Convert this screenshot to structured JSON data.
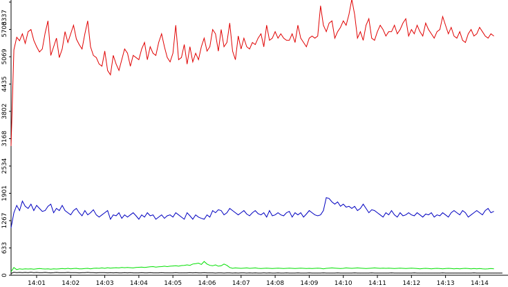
{
  "chart_data": {
    "type": "line",
    "grid": false,
    "ylim": [
      0,
      6337
    ],
    "y_ticks": [
      "0",
      "633",
      "1267",
      "1901",
      "2534",
      "3168",
      "3802",
      "4435",
      "5069",
      "5703",
      "6337"
    ],
    "x_range": [
      "14:00:15",
      "14:14:50"
    ],
    "x_ticks": [
      "14:01",
      "14:02",
      "14:03",
      "14:04",
      "14:05",
      "14:06",
      "14:07",
      "14:08",
      "14:09",
      "14:10",
      "14:11",
      "14:12",
      "14:13",
      "14:14"
    ],
    "series": [
      {
        "color": "#e00000",
        "x_start": "14:00:15",
        "x_step_seconds": 5,
        "values": [
          3000,
          5230,
          5520,
          5440,
          5600,
          5380,
          5650,
          5700,
          5450,
          5300,
          5180,
          5250,
          5620,
          5900,
          5100,
          5300,
          5500,
          5050,
          5250,
          5650,
          5400,
          5600,
          5800,
          5480,
          5350,
          5250,
          5600,
          5900,
          5300,
          5100,
          5050,
          4900,
          4850,
          5200,
          4750,
          4650,
          5100,
          4900,
          4750,
          5000,
          5250,
          5150,
          4850,
          5100,
          5050,
          5000,
          5250,
          5400,
          5000,
          5300,
          5150,
          5100,
          5400,
          5600,
          5300,
          5050,
          4950,
          5150,
          5800,
          5000,
          5050,
          5350,
          4900,
          5300,
          4950,
          5150,
          5000,
          5300,
          5500,
          5200,
          5300,
          5700,
          5600,
          5200,
          5700,
          5300,
          5400,
          5850,
          5200,
          5000,
          5550,
          5250,
          5500,
          5300,
          5250,
          5400,
          5350,
          5500,
          5600,
          5300,
          5800,
          5450,
          5500,
          5650,
          5500,
          5600,
          5500,
          5450,
          5450,
          5600,
          5400,
          5800,
          5500,
          5400,
          5300,
          5500,
          5550,
          5500,
          5550,
          6250,
          5800,
          5650,
          5850,
          5900,
          5500,
          5650,
          5750,
          5900,
          5800,
          6050,
          6400,
          6050,
          5500,
          5650,
          5450,
          5800,
          5950,
          5500,
          5450,
          5650,
          5800,
          5700,
          5550,
          5650,
          5650,
          5800,
          5600,
          5700,
          5850,
          5950,
          5550,
          5700,
          5600,
          5800,
          5650,
          5550,
          5850,
          5700,
          5600,
          5500,
          5650,
          5700,
          6000,
          5800,
          5600,
          5750,
          5550,
          5500,
          5650,
          5450,
          5400,
          5600,
          5700,
          5550,
          5600,
          5750,
          5650,
          5550,
          5500,
          5600,
          5550
        ]
      },
      {
        "color": "#0000c0",
        "x_start": "14:00:15",
        "x_step_seconds": 5,
        "values": [
          1100,
          1450,
          1620,
          1500,
          1720,
          1600,
          1550,
          1650,
          1500,
          1620,
          1550,
          1480,
          1500,
          1600,
          1650,
          1450,
          1550,
          1500,
          1620,
          1500,
          1450,
          1400,
          1500,
          1550,
          1450,
          1380,
          1500,
          1400,
          1450,
          1520,
          1400,
          1350,
          1400,
          1450,
          1500,
          1300,
          1400,
          1380,
          1450,
          1320,
          1400,
          1350,
          1400,
          1450,
          1380,
          1300,
          1400,
          1350,
          1450,
          1380,
          1400,
          1300,
          1350,
          1400,
          1320,
          1380,
          1400,
          1350,
          1450,
          1400,
          1350,
          1300,
          1450,
          1380,
          1300,
          1400,
          1350,
          1320,
          1300,
          1400,
          1350,
          1500,
          1450,
          1520,
          1500,
          1400,
          1450,
          1550,
          1500,
          1450,
          1400,
          1450,
          1500,
          1420,
          1380,
          1450,
          1500,
          1430,
          1400,
          1450,
          1350,
          1500,
          1380,
          1400,
          1450,
          1400,
          1380,
          1450,
          1480,
          1350,
          1450,
          1400,
          1450,
          1350,
          1420,
          1500,
          1450,
          1400,
          1380,
          1400,
          1500,
          1800,
          1780,
          1700,
          1650,
          1700,
          1600,
          1650,
          1580,
          1600,
          1550,
          1600,
          1500,
          1550,
          1650,
          1550,
          1450,
          1520,
          1500,
          1450,
          1400,
          1350,
          1450,
          1400,
          1500,
          1400,
          1350,
          1450,
          1380,
          1400,
          1450,
          1400,
          1380,
          1450,
          1400,
          1350,
          1420,
          1400,
          1450,
          1350,
          1400,
          1380,
          1450,
          1400,
          1350,
          1450,
          1500,
          1450,
          1400,
          1500,
          1450,
          1350,
          1400,
          1450,
          1500,
          1450,
          1400,
          1500,
          1550,
          1450,
          1480
        ]
      },
      {
        "color": "#00e000",
        "x_start": "14:00:15",
        "x_step_seconds": 5,
        "values": [
          80,
          180,
          130,
          150,
          140,
          150,
          145,
          150,
          140,
          150,
          155,
          150,
          145,
          150,
          140,
          150,
          145,
          150,
          155,
          150,
          160,
          150,
          155,
          160,
          150,
          150,
          155,
          160,
          150,
          160,
          165,
          160,
          170,
          160,
          175,
          165,
          170,
          175,
          170,
          180,
          175,
          180,
          175,
          170,
          180,
          185,
          190,
          180,
          190,
          195,
          200,
          190,
          195,
          200,
          210,
          200,
          210,
          215,
          220,
          210,
          225,
          230,
          240,
          230,
          260,
          270,
          280,
          250,
          320,
          260,
          230,
          220,
          240,
          210,
          220,
          260,
          230,
          180,
          160,
          170,
          165,
          160,
          165,
          170,
          160,
          165,
          170,
          160,
          155,
          160,
          165,
          160,
          155,
          160,
          165,
          160,
          155,
          160,
          165,
          160,
          155,
          160,
          165,
          160,
          155,
          160,
          155,
          160,
          165,
          160,
          150,
          160,
          165,
          170,
          165,
          160,
          155,
          160,
          170,
          165,
          160,
          165,
          170,
          165,
          160,
          155,
          160,
          165,
          170,
          165,
          160,
          165,
          160,
          165,
          160,
          155,
          160,
          165,
          160,
          155,
          160,
          165,
          160,
          155,
          150,
          155,
          160,
          155,
          150,
          155,
          160,
          155,
          150,
          155,
          160,
          155,
          150,
          155,
          150,
          155,
          160,
          155,
          150,
          155,
          150,
          155,
          150,
          145,
          150,
          155,
          150
        ]
      },
      {
        "color": "#000000",
        "x_start": "14:00:15",
        "x_step_seconds": 5,
        "values": [
          40,
          70,
          60,
          65,
          60,
          65,
          60,
          70,
          60,
          65,
          60,
          60,
          65,
          60,
          55,
          60,
          65,
          60,
          60,
          60,
          65,
          60,
          60,
          60,
          55,
          60,
          60,
          65,
          60,
          60,
          55,
          60,
          60,
          60,
          55,
          60,
          55,
          60,
          55,
          55,
          60,
          55,
          60,
          55,
          55,
          55,
          60,
          55,
          55,
          60,
          55,
          55,
          55,
          60,
          55,
          55,
          55,
          55,
          60,
          55,
          55,
          55,
          55,
          60,
          55,
          60,
          55,
          55,
          60,
          55,
          55,
          55,
          50,
          55,
          55,
          50,
          55,
          55,
          50,
          55,
          50,
          55,
          55,
          50,
          55,
          50,
          55,
          50,
          50,
          55,
          50,
          55,
          50,
          50,
          55,
          50,
          50,
          55,
          50,
          50,
          50,
          55,
          50,
          50,
          50,
          55,
          50,
          50,
          50,
          50,
          55,
          50,
          50,
          50,
          50,
          55,
          50,
          50,
          50,
          50,
          50,
          55,
          50,
          50,
          50,
          50,
          50,
          55,
          50,
          50,
          50,
          50,
          50,
          50,
          55,
          50,
          50,
          50,
          50,
          50,
          50,
          50,
          55,
          50,
          50,
          50,
          50,
          50,
          50,
          50,
          50,
          50,
          55,
          50,
          50,
          50,
          50,
          50,
          50,
          50,
          50,
          50,
          50,
          55,
          50,
          50,
          50,
          50,
          50,
          50,
          50,
          50,
          50,
          50
        ]
      }
    ]
  }
}
